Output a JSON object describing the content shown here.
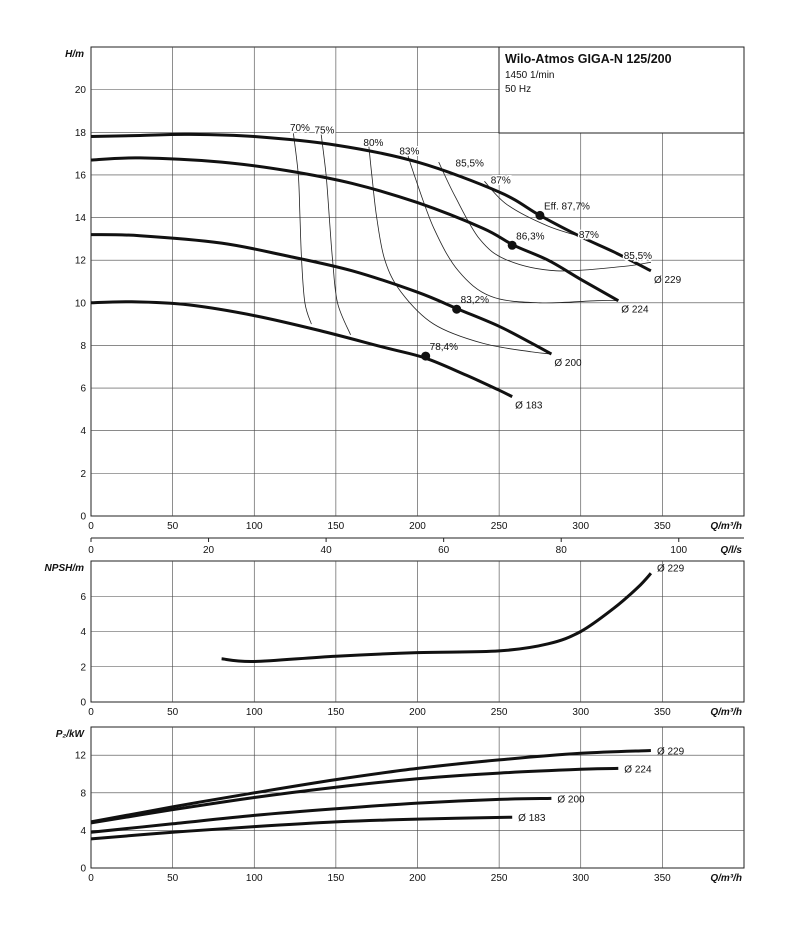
{
  "title_box": {
    "title": "Wilo-Atmos GIGA-N 125/200",
    "speed": "1450 1/min",
    "frequency": "50 Hz"
  },
  "chart_data": [
    {
      "id": "head",
      "type": "line",
      "ylabel": "H/m",
      "xlabel": "Q/m³/h",
      "xlim": [
        0,
        400
      ],
      "ylim": [
        0,
        22
      ],
      "x_ticks": [
        0,
        50,
        100,
        150,
        200,
        250,
        300,
        350
      ],
      "y_ticks": [
        0,
        2,
        4,
        6,
        8,
        10,
        12,
        14,
        16,
        18,
        20
      ],
      "grid": true,
      "series": [
        {
          "name": "Ø 229",
          "x": [
            0,
            30,
            60,
            100,
            150,
            200,
            250,
            275,
            300,
            320,
            343
          ],
          "y": [
            17.8,
            17.85,
            17.9,
            17.8,
            17.4,
            16.6,
            15.2,
            14.1,
            13.1,
            12.4,
            11.5
          ]
        },
        {
          "name": "Ø 224",
          "x": [
            0,
            30,
            80,
            120,
            160,
            200,
            240,
            259,
            280,
            300,
            323
          ],
          "y": [
            16.7,
            16.8,
            16.6,
            16.2,
            15.6,
            14.7,
            13.5,
            12.7,
            12.0,
            11.1,
            10.1
          ]
        },
        {
          "name": "Ø 200",
          "x": [
            0,
            30,
            80,
            120,
            160,
            200,
            225,
            250,
            270,
            282
          ],
          "y": [
            13.2,
            13.15,
            12.8,
            12.2,
            11.5,
            10.5,
            9.7,
            8.9,
            8.1,
            7.6
          ]
        },
        {
          "name": "Ø 183",
          "x": [
            0,
            25,
            60,
            100,
            140,
            180,
            205,
            230,
            250,
            258
          ],
          "y": [
            10.0,
            10.05,
            9.9,
            9.4,
            8.7,
            7.9,
            7.4,
            6.6,
            5.9,
            5.6
          ]
        }
      ],
      "efficiency_curves": [
        {
          "label": "70%",
          "x": [
            124,
            127,
            128,
            129,
            131,
            135
          ],
          "y": [
            17.95,
            16.0,
            14.0,
            12.0,
            10.0,
            9.0
          ]
        },
        {
          "label": "75%",
          "x": [
            141,
            144,
            146,
            148,
            151,
            159
          ],
          "y": [
            17.9,
            16.0,
            14.0,
            12.0,
            10.0,
            8.5
          ]
        },
        {
          "label": "80%",
          "x": [
            170,
            172,
            175,
            180,
            190,
            210,
            240,
            270,
            282
          ],
          "y": [
            17.5,
            16.0,
            14.0,
            12.0,
            10.5,
            9.0,
            8.1,
            7.7,
            7.6
          ]
        },
        {
          "label": "83%",
          "x": [
            193,
            198,
            210,
            225,
            245,
            275,
            310,
            323
          ],
          "y": [
            17.2,
            16.0,
            13.5,
            11.5,
            10.3,
            10.0,
            10.1,
            10.1
          ]
        },
        {
          "label": "85,5%",
          "x": [
            213,
            223,
            238,
            255,
            285,
            325,
            343
          ],
          "y": [
            16.6,
            15.0,
            13.0,
            12.0,
            11.5,
            11.7,
            11.9
          ]
        },
        {
          "label": "87%",
          "x": [
            241,
            255,
            280,
            305
          ],
          "y": [
            15.7,
            14.6,
            13.6,
            13.0
          ]
        }
      ],
      "points": [
        {
          "label": "Eff. 87,7%",
          "x": 275,
          "y": 14.1
        },
        {
          "label": "86,3%",
          "x": 258,
          "y": 12.7
        },
        {
          "label": "83,2%",
          "x": 224,
          "y": 9.7
        },
        {
          "label": "78,4%",
          "x": 205,
          "y": 7.5
        }
      ],
      "efficiency_labels": [
        {
          "label": "70%",
          "x": 128,
          "y": 18.05
        },
        {
          "label": "75%",
          "x": 143,
          "y": 17.95
        },
        {
          "label": "80%",
          "x": 173,
          "y": 17.35
        },
        {
          "label": "83%",
          "x": 195,
          "y": 16.95
        },
        {
          "label": "85,5%",
          "x": 232,
          "y": 16.4
        },
        {
          "label": "87%",
          "x": 251,
          "y": 15.6
        },
        {
          "label": "87%",
          "x": 305,
          "y": 13.05
        },
        {
          "label": "85,5%",
          "x": 335,
          "y": 12.05
        }
      ]
    },
    {
      "id": "flow_ls_axis",
      "type": "line",
      "xlabel": "Q/l/s",
      "xlim": [
        0,
        111.1
      ],
      "x_ticks": [
        0,
        20,
        40,
        60,
        80,
        100
      ]
    },
    {
      "id": "npsh",
      "type": "line",
      "ylabel": "NPSH/m",
      "xlabel": "Q/m³/h",
      "xlim": [
        0,
        400
      ],
      "ylim": [
        0,
        8
      ],
      "x_ticks": [
        0,
        50,
        100,
        150,
        200,
        250,
        300,
        350
      ],
      "y_ticks": [
        0,
        2,
        4,
        6
      ],
      "grid": true,
      "series": [
        {
          "name": "Ø 229",
          "x": [
            80,
            100,
            150,
            200,
            250,
            280,
            300,
            320,
            335,
            343
          ],
          "y": [
            2.45,
            2.3,
            2.6,
            2.8,
            2.9,
            3.3,
            4.0,
            5.3,
            6.5,
            7.3
          ]
        }
      ]
    },
    {
      "id": "power",
      "type": "line",
      "ylabel": "P₂/kW",
      "xlabel": "Q/m³/h",
      "xlim": [
        0,
        400
      ],
      "ylim": [
        0,
        15
      ],
      "x_ticks": [
        0,
        50,
        100,
        150,
        200,
        250,
        300,
        350
      ],
      "y_ticks": [
        0,
        4,
        8,
        12
      ],
      "grid": true,
      "series": [
        {
          "name": "Ø 229",
          "x": [
            0,
            50,
            100,
            150,
            200,
            250,
            300,
            343
          ],
          "y": [
            4.9,
            6.5,
            8.0,
            9.4,
            10.6,
            11.5,
            12.2,
            12.5
          ]
        },
        {
          "name": "Ø 224",
          "x": [
            0,
            50,
            100,
            150,
            200,
            250,
            300,
            323
          ],
          "y": [
            4.8,
            6.2,
            7.5,
            8.6,
            9.5,
            10.1,
            10.5,
            10.6
          ]
        },
        {
          "name": "Ø 200",
          "x": [
            0,
            50,
            100,
            150,
            200,
            250,
            282
          ],
          "y": [
            3.8,
            4.7,
            5.6,
            6.3,
            6.9,
            7.3,
            7.4
          ]
        },
        {
          "name": "Ø 183",
          "x": [
            0,
            50,
            100,
            150,
            200,
            258
          ],
          "y": [
            3.1,
            3.8,
            4.4,
            4.9,
            5.2,
            5.4
          ]
        }
      ]
    }
  ]
}
